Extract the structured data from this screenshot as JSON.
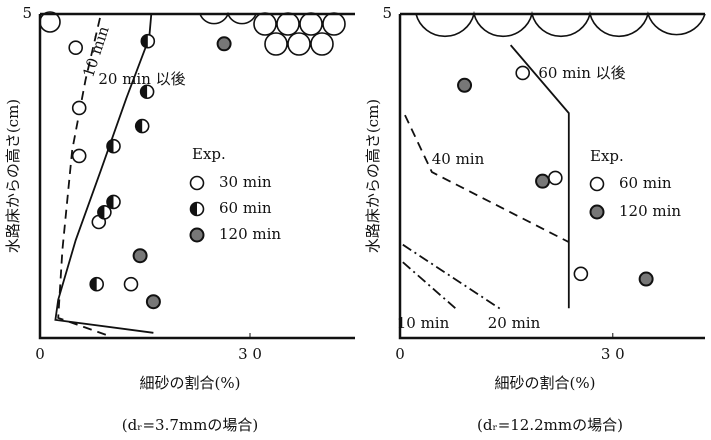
{
  "chart_data": [
    {
      "type": "scatter",
      "xlabel": "細砂の割合(%)",
      "ylabel": "水路床からの高さ(cm)",
      "caption": "(dᵣ=3.7mmの場合)",
      "xlim": [
        0,
        45
      ],
      "ylim": [
        0,
        5
      ],
      "xticks": [
        0,
        {
          "value": 30,
          "label": "3 0"
        }
      ],
      "yticks": [
        5
      ],
      "legend_title": "Exp.",
      "series": [
        {
          "name": "30 min",
          "marker": "open",
          "x": [
            5.1,
            5.6,
            5.6,
            8.4,
            13.0
          ],
          "values": [
            4.48,
            3.55,
            2.81,
            1.79,
            0.83
          ]
        },
        {
          "name": "60 min",
          "marker": "half",
          "x": [
            15.4,
            15.3,
            14.6,
            10.5,
            10.5,
            9.2,
            8.1
          ],
          "values": [
            4.58,
            3.8,
            3.27,
            2.96,
            2.1,
            1.94,
            0.83
          ]
        },
        {
          "name": "120 min",
          "marker": "dotted",
          "x": [
            26.3,
            14.3,
            16.2
          ],
          "values": [
            4.54,
            1.27,
            0.56
          ]
        }
      ],
      "lines": [
        {
          "name": "10 min",
          "style": "dashed",
          "x": [
            9.4,
            2.6,
            3.2,
            4.6,
            6.5,
            8.7
          ],
          "values": [
            0.05,
            0.31,
            1.36,
            2.9,
            3.98,
            5
          ]
        },
        {
          "name": "20 min 以後",
          "style": "solid",
          "x": [
            16.2,
            2.2,
            2.6,
            5.1,
            8.7,
            12.3,
            15.6,
            15.9
          ],
          "values": [
            0.08,
            0.28,
            0.59,
            1.51,
            2.59,
            3.69,
            4.63,
            5
          ]
        }
      ]
    },
    {
      "type": "scatter",
      "xlabel": "細砂の割合(%)",
      "ylabel": "水路床からの高さ(cm)",
      "caption": "(dᵣ=12.2mmの場合)",
      "xlim": [
        0,
        43
      ],
      "ylim": [
        0,
        5
      ],
      "xticks": [
        0,
        {
          "value": 30,
          "label": "3 0"
        }
      ],
      "yticks": [
        5
      ],
      "legend_title": "Exp.",
      "series": [
        {
          "name": "60 min",
          "marker": "open",
          "x": [
            17.3,
            21.9,
            25.5
          ],
          "values": [
            4.09,
            2.47,
            0.99
          ]
        },
        {
          "name": "120 min",
          "marker": "dotted",
          "x": [
            9.1,
            20.1,
            34.7
          ],
          "values": [
            3.9,
            2.42,
            0.91
          ]
        }
      ],
      "lines": [
        {
          "name": "60 min 以後",
          "style": "solid",
          "x": [
            15.6,
            23.8,
            23.8
          ],
          "values": [
            4.52,
            3.47,
            0.46
          ]
        },
        {
          "name": "40 min",
          "style": "dashed",
          "x": [
            0.7,
            4.5,
            23.8
          ],
          "values": [
            3.44,
            2.56,
            1.48
          ]
        },
        {
          "name": "10 min",
          "style": "dashdot",
          "x": [
            0.4,
            7.8
          ],
          "values": [
            1.17,
            0.46
          ]
        },
        {
          "name": "20 min",
          "style": "dashdot",
          "x": [
            0.4,
            14.4
          ],
          "values": [
            1.44,
            0.43
          ]
        }
      ]
    }
  ]
}
